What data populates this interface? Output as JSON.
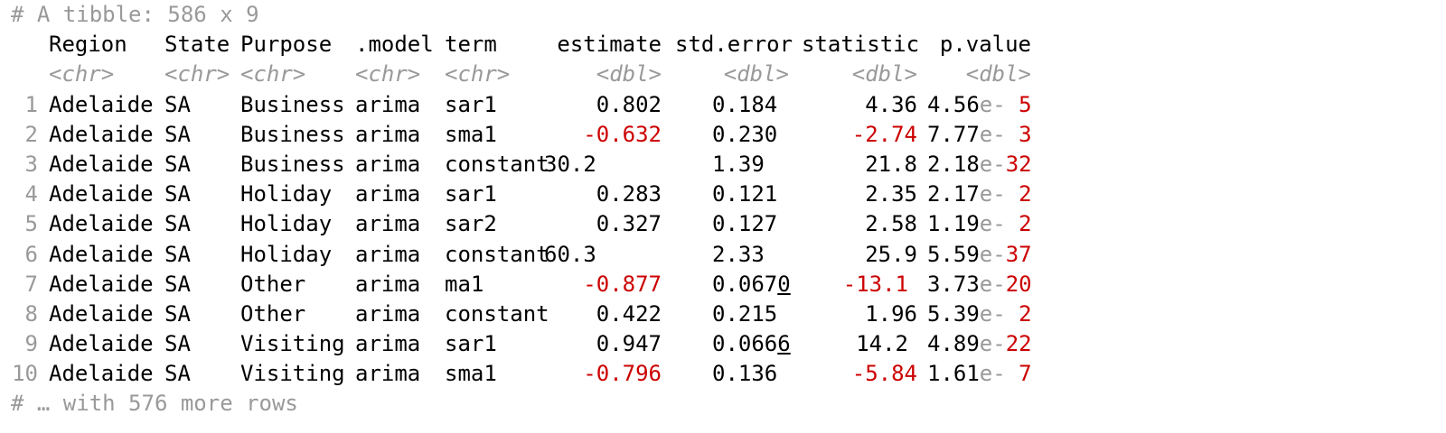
{
  "header": {
    "title": "# A tibble: 586 x 9"
  },
  "columns": [
    {
      "name": "Region",
      "type": "<chr>"
    },
    {
      "name": "State",
      "type": "<chr>"
    },
    {
      "name": "Purpose",
      "type": "<chr>"
    },
    {
      "name": ".model",
      "type": "<chr>"
    },
    {
      "name": "term",
      "type": "<chr>"
    },
    {
      "name": "estimate",
      "type": "<dbl>"
    },
    {
      "name": "std.error",
      "type": "<dbl>"
    },
    {
      "name": "statistic",
      "type": "<dbl>"
    },
    {
      "name": "p.value",
      "type": "<dbl>"
    }
  ],
  "rows": [
    {
      "idx": "1",
      "region": "Adelaide",
      "state": "SA",
      "purpose": "Business",
      "model": "arima",
      "term": "sar1",
      "estimate": "0.802",
      "est_neg": false,
      "est_align": "right",
      "se_main": "0.184",
      "se_u": "",
      "statistic": "4.36",
      "stat_neg": false,
      "pv_mant": "4.56",
      "pv_e": "e-",
      "pv_exp": " 5"
    },
    {
      "idx": "2",
      "region": "Adelaide",
      "state": "SA",
      "purpose": "Business",
      "model": "arima",
      "term": "sma1",
      "estimate": "0.632",
      "est_neg": true,
      "est_align": "right",
      "se_main": "0.230",
      "se_u": "",
      "statistic": "2.74",
      "stat_neg": true,
      "pv_mant": "7.77",
      "pv_e": "e-",
      "pv_exp": " 3"
    },
    {
      "idx": "3",
      "region": "Adelaide",
      "state": "SA",
      "purpose": "Business",
      "model": "arima",
      "term": "constant",
      "estimate": "30.2",
      "est_neg": false,
      "est_align": "left",
      "se_main": "1.39",
      "se_u": "",
      "statistic": "21.8",
      "stat_neg": false,
      "pv_mant": "2.18",
      "pv_e": "e-",
      "pv_exp": "32"
    },
    {
      "idx": "4",
      "region": "Adelaide",
      "state": "SA",
      "purpose": "Holiday",
      "model": "arima",
      "term": "sar1",
      "estimate": "0.283",
      "est_neg": false,
      "est_align": "right",
      "se_main": "0.121",
      "se_u": "",
      "statistic": "2.35",
      "stat_neg": false,
      "pv_mant": "2.17",
      "pv_e": "e-",
      "pv_exp": " 2"
    },
    {
      "idx": "5",
      "region": "Adelaide",
      "state": "SA",
      "purpose": "Holiday",
      "model": "arima",
      "term": "sar2",
      "estimate": "0.327",
      "est_neg": false,
      "est_align": "right",
      "se_main": "0.127",
      "se_u": "",
      "statistic": "2.58",
      "stat_neg": false,
      "pv_mant": "1.19",
      "pv_e": "e-",
      "pv_exp": " 2"
    },
    {
      "idx": "6",
      "region": "Adelaide",
      "state": "SA",
      "purpose": "Holiday",
      "model": "arima",
      "term": "constant",
      "estimate": "60.3",
      "est_neg": false,
      "est_align": "left",
      "se_main": "2.33",
      "se_u": "",
      "statistic": "25.9",
      "stat_neg": false,
      "pv_mant": "5.59",
      "pv_e": "e-",
      "pv_exp": "37"
    },
    {
      "idx": "7",
      "region": "Adelaide",
      "state": "SA",
      "purpose": "Other",
      "model": "arima",
      "term": "ma1",
      "estimate": "0.877",
      "est_neg": true,
      "est_align": "right",
      "se_main": "0.067",
      "se_u": "0",
      "statistic": "13.1",
      "stat_neg": true,
      "stat_left": true,
      "pv_mant": "3.73",
      "pv_e": "e-",
      "pv_exp": "20"
    },
    {
      "idx": "8",
      "region": "Adelaide",
      "state": "SA",
      "purpose": "Other",
      "model": "arima",
      "term": "constant",
      "estimate": "0.422",
      "est_neg": false,
      "est_align": "right",
      "se_main": "0.215",
      "se_u": "",
      "statistic": "1.96",
      "stat_neg": false,
      "pv_mant": "5.39",
      "pv_e": "e-",
      "pv_exp": " 2"
    },
    {
      "idx": "9",
      "region": "Adelaide",
      "state": "SA",
      "purpose": "Visiting",
      "model": "arima",
      "term": "sar1",
      "estimate": "0.947",
      "est_neg": false,
      "est_align": "right",
      "se_main": "0.066",
      "se_u": "6",
      "statistic": "14.2",
      "stat_neg": false,
      "stat_left": true,
      "pv_mant": "4.89",
      "pv_e": "e-",
      "pv_exp": "22"
    },
    {
      "idx": "10",
      "region": "Adelaide",
      "state": "SA",
      "purpose": "Visiting",
      "model": "arima",
      "term": "sma1",
      "estimate": "0.796",
      "est_neg": true,
      "est_align": "right",
      "se_main": "0.136",
      "se_u": "",
      "statistic": "5.84",
      "stat_neg": true,
      "pv_mant": "1.61",
      "pv_e": "e-",
      "pv_exp": " 7"
    }
  ],
  "footer": {
    "text": "# … with 576 more rows"
  },
  "colors": {
    "negative": "#cc0000",
    "dim": "#999999"
  }
}
